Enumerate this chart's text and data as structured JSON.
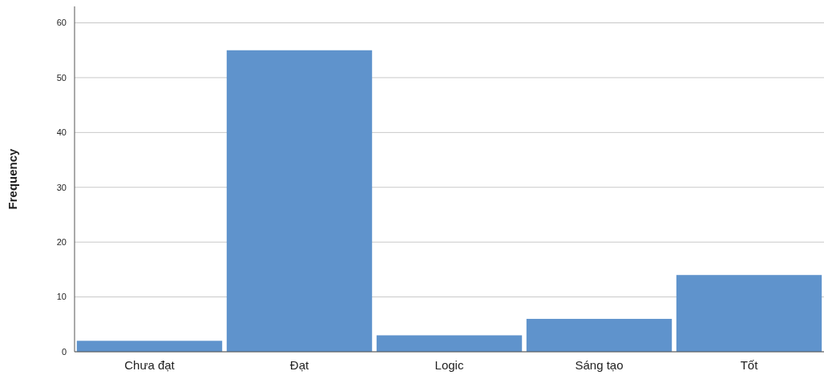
{
  "chart_data": {
    "type": "bar",
    "ylabel": "Frequency",
    "categories": [
      "Chưa đạt",
      "Đạt",
      "Logic",
      "Sáng tạo",
      "Tốt"
    ],
    "values": [
      2,
      55,
      3,
      6,
      14
    ],
    "color": "#5f93cc",
    "ylim": [
      0,
      63
    ],
    "yticks": [
      0,
      10,
      20,
      30,
      40,
      50,
      60
    ],
    "grid": "y"
  }
}
